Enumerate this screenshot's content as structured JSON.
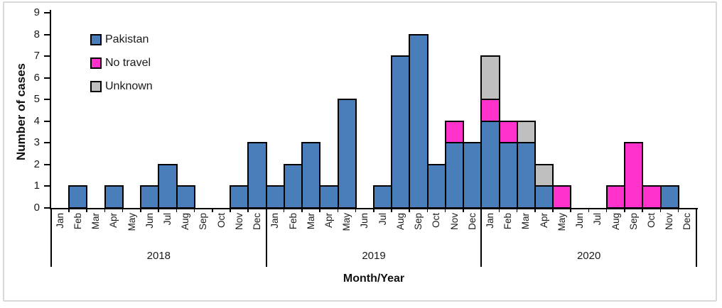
{
  "chart_data": {
    "type": "bar",
    "stacked": true,
    "title": "",
    "xlabel": "Month/Year",
    "ylabel": "Number of cases",
    "ylim": [
      0,
      9
    ],
    "yticks": [
      0,
      1,
      2,
      3,
      4,
      5,
      6,
      7,
      8,
      9
    ],
    "grid": false,
    "legend_position": "top-left-inside",
    "years": [
      "2018",
      "2019",
      "2020"
    ],
    "month_labels": [
      "Jan",
      "Feb",
      "Mar",
      "Apr",
      "May",
      "Jun",
      "Jul",
      "Aug",
      "Sep",
      "Oct",
      "Nov",
      "Dec"
    ],
    "series": [
      {
        "name": "Pakistan",
        "color": "#4a7ebb",
        "values": [
          0,
          1,
          0,
          1,
          0,
          1,
          2,
          1,
          0,
          0,
          1,
          3,
          1,
          2,
          3,
          1,
          5,
          0,
          1,
          7,
          8,
          2,
          3,
          3,
          4,
          3,
          3,
          1,
          0,
          0,
          0,
          0,
          0,
          0,
          1,
          0
        ]
      },
      {
        "name": "No travel",
        "color": "#ff33cc",
        "values": [
          0,
          0,
          0,
          0,
          0,
          0,
          0,
          0,
          0,
          0,
          0,
          0,
          0,
          0,
          0,
          0,
          0,
          0,
          0,
          0,
          0,
          0,
          1,
          0,
          1,
          1,
          0,
          0,
          1,
          0,
          0,
          1,
          3,
          1,
          0,
          0
        ]
      },
      {
        "name": "Unknown",
        "color": "#bfbfbf",
        "values": [
          0,
          0,
          0,
          0,
          0,
          0,
          0,
          0,
          0,
          0,
          0,
          0,
          0,
          0,
          0,
          0,
          0,
          0,
          0,
          0,
          0,
          0,
          0,
          0,
          2,
          0,
          1,
          1,
          0,
          0,
          0,
          0,
          0,
          0,
          0,
          0
        ]
      }
    ]
  }
}
